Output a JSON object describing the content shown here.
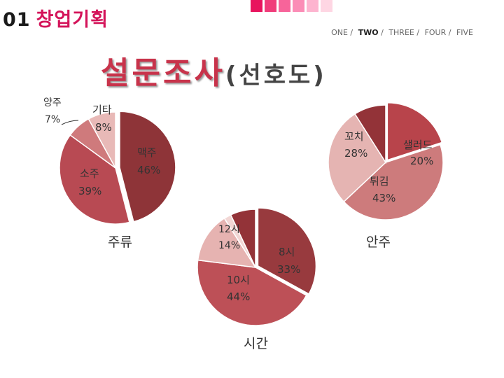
{
  "header": {
    "number": "01",
    "title": "창업기획"
  },
  "nav": [
    "ONE",
    "TWO",
    "THREE",
    "FOUR",
    "FIVE"
  ],
  "title": {
    "main": "설문조사",
    "sub": "(선호도)"
  },
  "colors": {
    "accent": "#d4145a",
    "squares": [
      "#e8145e",
      "#f03c7a",
      "#f7649a",
      "#fb8db6",
      "#fdb4cf",
      "#fed6e3"
    ]
  },
  "chart_data": [
    {
      "type": "pie",
      "title": "주류",
      "slices": [
        {
          "label": "맥주",
          "value": 46
        },
        {
          "label": "소주",
          "value": 39
        },
        {
          "label": "양주",
          "value": 7
        },
        {
          "label": "기타",
          "value": 8
        }
      ]
    },
    {
      "type": "pie",
      "title": "시간",
      "slices": [
        {
          "label": "8시",
          "value": 33
        },
        {
          "label": "10시",
          "value": 44
        },
        {
          "label": "12시",
          "value": 14
        },
        {
          "label": "",
          "value": 2
        },
        {
          "label": "",
          "value": 7
        }
      ]
    },
    {
      "type": "pie",
      "title": "안주",
      "slices": [
        {
          "label": "샐러드",
          "value": 20
        },
        {
          "label": "튀김",
          "value": 43
        },
        {
          "label": "꼬치",
          "value": 28
        },
        {
          "label": "",
          "value": 9
        }
      ]
    }
  ],
  "labels": {
    "beer": "맥주",
    "beer_pct": "46%",
    "soju": "소주",
    "soju_pct": "39%",
    "liquor": "양주",
    "liquor_pct": "7%",
    "etc": "기타",
    "etc_pct": "8%",
    "t8": "8시",
    "t8_pct": "33%",
    "t10": "10시",
    "t10_pct": "44%",
    "t12": "12시",
    "t12_pct": "14%",
    "salad": "샐러드",
    "salad_pct": "20%",
    "fried": "튀김",
    "fried_pct": "43%",
    "skewer": "꼬치",
    "skewer_pct": "28%"
  }
}
